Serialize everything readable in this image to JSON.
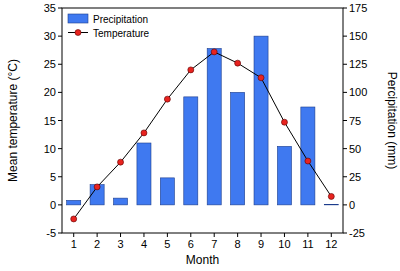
{
  "chart_data": {
    "type": "bar",
    "x_label": "Month",
    "y_label": "Mean temperature (°C)",
    "y2_label": "Percipitation (mm)",
    "categories": [
      "1",
      "2",
      "3",
      "4",
      "5",
      "6",
      "7",
      "8",
      "9",
      "10",
      "11",
      "12"
    ],
    "series": [
      {
        "name": "Precipitation",
        "type": "bar",
        "axis": "y2",
        "color": "#3f79f0",
        "values": [
          4,
          18,
          6,
          55,
          24,
          96,
          139,
          100,
          150,
          52,
          87,
          0.5
        ]
      },
      {
        "name": "Temperature",
        "type": "line",
        "color": "#e8231f",
        "marker": "circle",
        "line_style": "solid",
        "values": [
          -2.5,
          3.2,
          7.6,
          12.8,
          18.8,
          24,
          27.2,
          25.2,
          22.6,
          14.7,
          7.8,
          1.5
        ]
      }
    ],
    "ylim": [
      -5,
      35
    ],
    "yticks": [
      -5,
      0,
      5,
      10,
      15,
      20,
      25,
      30,
      35
    ],
    "y2lim": [
      -25,
      175
    ],
    "y2ticks": [
      -25,
      0,
      25,
      50,
      75,
      100,
      125,
      150,
      175
    ],
    "legend": "upper left"
  }
}
